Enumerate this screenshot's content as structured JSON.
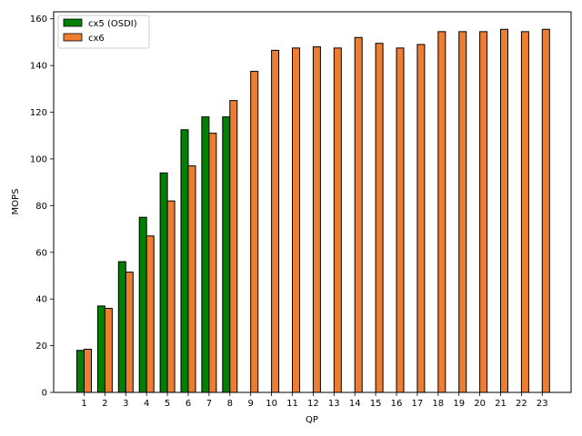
{
  "chart_data": {
    "type": "bar",
    "title": "",
    "xlabel": "QP",
    "ylabel": "MOPS",
    "categories": [
      "1",
      "2",
      "3",
      "4",
      "5",
      "6",
      "7",
      "8",
      "9",
      "10",
      "11",
      "12",
      "13",
      "14",
      "15",
      "16",
      "17",
      "18",
      "19",
      "20",
      "21",
      "22",
      "23"
    ],
    "series": [
      {
        "name": "cx5 (OSDI)",
        "color": "#008000",
        "values": [
          18,
          37,
          56,
          75,
          94,
          112.5,
          118,
          118,
          null,
          null,
          null,
          null,
          null,
          null,
          null,
          null,
          null,
          null,
          null,
          null,
          null,
          null,
          null
        ]
      },
      {
        "name": "cx6",
        "color": "#ed7d31",
        "values": [
          18.5,
          36,
          51.5,
          67,
          82,
          97,
          111,
          125,
          137.5,
          146.5,
          147.5,
          148,
          147.5,
          152,
          149.5,
          147.5,
          149,
          154.5,
          154.5,
          154.5,
          155.5,
          154.5,
          155.5
        ]
      }
    ],
    "ylim": [
      0,
      163
    ],
    "yticks": [
      0,
      20,
      40,
      60,
      80,
      100,
      120,
      140,
      160
    ],
    "grid": false,
    "legend_position": "top-left"
  }
}
